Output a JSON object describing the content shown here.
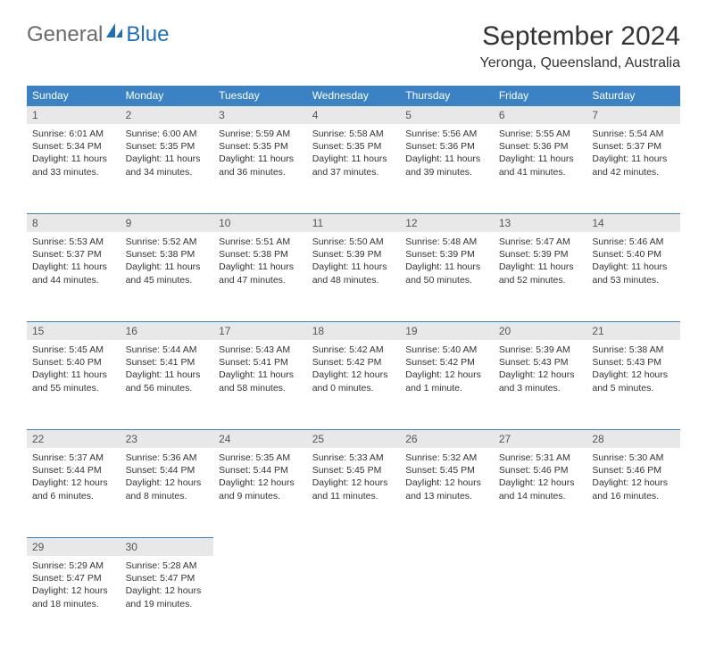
{
  "brand": {
    "part1": "General",
    "part2": "Blue"
  },
  "title": "September 2024",
  "location": "Yeronga, Queensland, Australia",
  "colors": {
    "header_bg": "#3b82c4",
    "header_text": "#ffffff",
    "daynum_bg": "#e8e8e8",
    "border": "#3b82c4",
    "text": "#333333",
    "logo_gray": "#6b6b6b",
    "logo_blue": "#1e6fb3"
  },
  "weekdays": [
    "Sunday",
    "Monday",
    "Tuesday",
    "Wednesday",
    "Thursday",
    "Friday",
    "Saturday"
  ],
  "weeks": [
    [
      {
        "day": "1",
        "sunrise": "Sunrise: 6:01 AM",
        "sunset": "Sunset: 5:34 PM",
        "daylight": "Daylight: 11 hours and 33 minutes."
      },
      {
        "day": "2",
        "sunrise": "Sunrise: 6:00 AM",
        "sunset": "Sunset: 5:35 PM",
        "daylight": "Daylight: 11 hours and 34 minutes."
      },
      {
        "day": "3",
        "sunrise": "Sunrise: 5:59 AM",
        "sunset": "Sunset: 5:35 PM",
        "daylight": "Daylight: 11 hours and 36 minutes."
      },
      {
        "day": "4",
        "sunrise": "Sunrise: 5:58 AM",
        "sunset": "Sunset: 5:35 PM",
        "daylight": "Daylight: 11 hours and 37 minutes."
      },
      {
        "day": "5",
        "sunrise": "Sunrise: 5:56 AM",
        "sunset": "Sunset: 5:36 PM",
        "daylight": "Daylight: 11 hours and 39 minutes."
      },
      {
        "day": "6",
        "sunrise": "Sunrise: 5:55 AM",
        "sunset": "Sunset: 5:36 PM",
        "daylight": "Daylight: 11 hours and 41 minutes."
      },
      {
        "day": "7",
        "sunrise": "Sunrise: 5:54 AM",
        "sunset": "Sunset: 5:37 PM",
        "daylight": "Daylight: 11 hours and 42 minutes."
      }
    ],
    [
      {
        "day": "8",
        "sunrise": "Sunrise: 5:53 AM",
        "sunset": "Sunset: 5:37 PM",
        "daylight": "Daylight: 11 hours and 44 minutes."
      },
      {
        "day": "9",
        "sunrise": "Sunrise: 5:52 AM",
        "sunset": "Sunset: 5:38 PM",
        "daylight": "Daylight: 11 hours and 45 minutes."
      },
      {
        "day": "10",
        "sunrise": "Sunrise: 5:51 AM",
        "sunset": "Sunset: 5:38 PM",
        "daylight": "Daylight: 11 hours and 47 minutes."
      },
      {
        "day": "11",
        "sunrise": "Sunrise: 5:50 AM",
        "sunset": "Sunset: 5:39 PM",
        "daylight": "Daylight: 11 hours and 48 minutes."
      },
      {
        "day": "12",
        "sunrise": "Sunrise: 5:48 AM",
        "sunset": "Sunset: 5:39 PM",
        "daylight": "Daylight: 11 hours and 50 minutes."
      },
      {
        "day": "13",
        "sunrise": "Sunrise: 5:47 AM",
        "sunset": "Sunset: 5:39 PM",
        "daylight": "Daylight: 11 hours and 52 minutes."
      },
      {
        "day": "14",
        "sunrise": "Sunrise: 5:46 AM",
        "sunset": "Sunset: 5:40 PM",
        "daylight": "Daylight: 11 hours and 53 minutes."
      }
    ],
    [
      {
        "day": "15",
        "sunrise": "Sunrise: 5:45 AM",
        "sunset": "Sunset: 5:40 PM",
        "daylight": "Daylight: 11 hours and 55 minutes."
      },
      {
        "day": "16",
        "sunrise": "Sunrise: 5:44 AM",
        "sunset": "Sunset: 5:41 PM",
        "daylight": "Daylight: 11 hours and 56 minutes."
      },
      {
        "day": "17",
        "sunrise": "Sunrise: 5:43 AM",
        "sunset": "Sunset: 5:41 PM",
        "daylight": "Daylight: 11 hours and 58 minutes."
      },
      {
        "day": "18",
        "sunrise": "Sunrise: 5:42 AM",
        "sunset": "Sunset: 5:42 PM",
        "daylight": "Daylight: 12 hours and 0 minutes."
      },
      {
        "day": "19",
        "sunrise": "Sunrise: 5:40 AM",
        "sunset": "Sunset: 5:42 PM",
        "daylight": "Daylight: 12 hours and 1 minute."
      },
      {
        "day": "20",
        "sunrise": "Sunrise: 5:39 AM",
        "sunset": "Sunset: 5:43 PM",
        "daylight": "Daylight: 12 hours and 3 minutes."
      },
      {
        "day": "21",
        "sunrise": "Sunrise: 5:38 AM",
        "sunset": "Sunset: 5:43 PM",
        "daylight": "Daylight: 12 hours and 5 minutes."
      }
    ],
    [
      {
        "day": "22",
        "sunrise": "Sunrise: 5:37 AM",
        "sunset": "Sunset: 5:44 PM",
        "daylight": "Daylight: 12 hours and 6 minutes."
      },
      {
        "day": "23",
        "sunrise": "Sunrise: 5:36 AM",
        "sunset": "Sunset: 5:44 PM",
        "daylight": "Daylight: 12 hours and 8 minutes."
      },
      {
        "day": "24",
        "sunrise": "Sunrise: 5:35 AM",
        "sunset": "Sunset: 5:44 PM",
        "daylight": "Daylight: 12 hours and 9 minutes."
      },
      {
        "day": "25",
        "sunrise": "Sunrise: 5:33 AM",
        "sunset": "Sunset: 5:45 PM",
        "daylight": "Daylight: 12 hours and 11 minutes."
      },
      {
        "day": "26",
        "sunrise": "Sunrise: 5:32 AM",
        "sunset": "Sunset: 5:45 PM",
        "daylight": "Daylight: 12 hours and 13 minutes."
      },
      {
        "day": "27",
        "sunrise": "Sunrise: 5:31 AM",
        "sunset": "Sunset: 5:46 PM",
        "daylight": "Daylight: 12 hours and 14 minutes."
      },
      {
        "day": "28",
        "sunrise": "Sunrise: 5:30 AM",
        "sunset": "Sunset: 5:46 PM",
        "daylight": "Daylight: 12 hours and 16 minutes."
      }
    ],
    [
      {
        "day": "29",
        "sunrise": "Sunrise: 5:29 AM",
        "sunset": "Sunset: 5:47 PM",
        "daylight": "Daylight: 12 hours and 18 minutes."
      },
      {
        "day": "30",
        "sunrise": "Sunrise: 5:28 AM",
        "sunset": "Sunset: 5:47 PM",
        "daylight": "Daylight: 12 hours and 19 minutes."
      },
      null,
      null,
      null,
      null,
      null
    ]
  ]
}
